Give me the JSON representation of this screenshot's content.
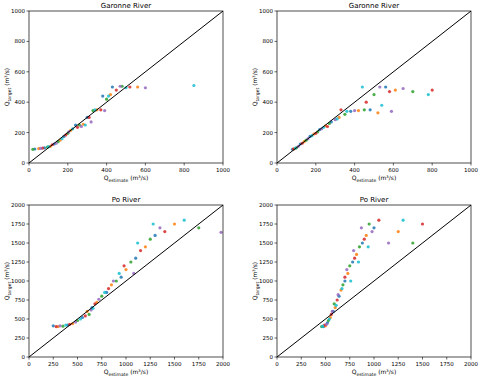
{
  "chart_data": [
    {
      "type": "scatter",
      "title": "Garonne River",
      "xlabel": "Qestimate (m³/s)",
      "ylabel": "Qtarget (m³/s)",
      "xlim": [
        0,
        1000
      ],
      "ylim": [
        0,
        1000
      ],
      "xticks": [
        0,
        200,
        400,
        600,
        800,
        1000
      ],
      "yticks": [
        0,
        200,
        400,
        600,
        800,
        1000
      ],
      "series": [
        {
          "color": "#1f77b4",
          "x": [
            30,
            80,
            130,
            180,
            240,
            300,
            380,
            430
          ],
          "values": [
            92,
            100,
            125,
            175,
            250,
            300,
            440,
            500
          ]
        },
        {
          "color": "#ff7f0e",
          "x": [
            50,
            110,
            160,
            215,
            280,
            350,
            420,
            560
          ],
          "values": [
            95,
            110,
            150,
            215,
            255,
            350,
            450,
            500
          ]
        },
        {
          "color": "#2ca02c",
          "x": [
            20,
            95,
            150,
            200,
            260,
            330,
            400,
            480
          ],
          "values": [
            90,
            105,
            140,
            195,
            250,
            345,
            420,
            505
          ]
        },
        {
          "color": "#d62728",
          "x": [
            70,
            120,
            190,
            250,
            310,
            370,
            450,
            520
          ],
          "values": [
            98,
            120,
            185,
            235,
            300,
            350,
            480,
            500
          ]
        },
        {
          "color": "#9467bd",
          "x": [
            60,
            140,
            205,
            270,
            320,
            390,
            470,
            600
          ],
          "values": [
            96,
            130,
            205,
            240,
            270,
            345,
            505,
            495
          ]
        },
        {
          "color": "#17becf",
          "x": [
            100,
            170,
            225,
            290,
            340,
            410,
            500,
            850
          ],
          "values": [
            108,
            160,
            225,
            250,
            350,
            440,
            495,
            510
          ]
        },
        {
          "type": "line",
          "color": "#000000",
          "x": [
            0,
            1000
          ],
          "values": [
            0,
            1000
          ]
        }
      ]
    },
    {
      "type": "scatter",
      "title": "Garonne River",
      "xlabel": "Qestimate (m³/s)",
      "ylabel": "Qtarget (m³/s)",
      "xlim": [
        0,
        1000
      ],
      "ylim": [
        0,
        1000
      ],
      "xticks": [
        0,
        200,
        400,
        600,
        800,
        1000
      ],
      "yticks": [
        0,
        200,
        400,
        600,
        800,
        1000
      ],
      "series": [
        {
          "color": "#1f77b4",
          "x": [
            80,
            120,
            170,
            220,
            280,
            380,
            480,
            560
          ],
          "values": [
            90,
            125,
            175,
            220,
            270,
            340,
            350,
            500
          ]
        },
        {
          "color": "#ff7f0e",
          "x": [
            90,
            140,
            190,
            250,
            320,
            420,
            520,
            610
          ],
          "values": [
            95,
            140,
            190,
            245,
            300,
            345,
            330,
            480
          ]
        },
        {
          "color": "#2ca02c",
          "x": [
            100,
            150,
            210,
            270,
            350,
            450,
            500,
            700
          ],
          "values": [
            100,
            150,
            205,
            260,
            320,
            350,
            450,
            470
          ]
        },
        {
          "color": "#d62728",
          "x": [
            85,
            130,
            200,
            260,
            330,
            460,
            580,
            800
          ],
          "values": [
            92,
            130,
            195,
            240,
            350,
            400,
            470,
            480
          ]
        },
        {
          "color": "#9467bd",
          "x": [
            110,
            160,
            230,
            300,
            400,
            530,
            590,
            650
          ],
          "values": [
            110,
            160,
            225,
            285,
            345,
            500,
            340,
            490
          ]
        },
        {
          "color": "#17becf",
          "x": [
            95,
            180,
            240,
            310,
            360,
            440,
            540,
            780
          ],
          "values": [
            98,
            180,
            235,
            290,
            340,
            500,
            380,
            450
          ]
        },
        {
          "type": "line",
          "color": "#000000",
          "x": [
            0,
            1000
          ],
          "values": [
            0,
            1000
          ]
        }
      ]
    },
    {
      "type": "scatter",
      "title": "Po River",
      "xlabel": "Qestimate (m³/s)",
      "ylabel": "Qtarget (m³/s)",
      "xlim": [
        0,
        2000
      ],
      "ylim": [
        0,
        2000
      ],
      "xticks": [
        0,
        250,
        500,
        750,
        1000,
        1250,
        1500,
        1750,
        2000
      ],
      "yticks": [
        0,
        250,
        500,
        750,
        1000,
        1250,
        1500,
        1750,
        2000
      ],
      "series": [
        {
          "color": "#1f77b4",
          "x": [
            250,
            400,
            550,
            650,
            800,
            950,
            1100,
            1300
          ],
          "values": [
            410,
            420,
            520,
            650,
            850,
            1050,
            1300,
            1600
          ]
        },
        {
          "color": "#ff7f0e",
          "x": [
            300,
            450,
            600,
            700,
            850,
            1000,
            1200,
            1500
          ],
          "values": [
            400,
            440,
            600,
            720,
            950,
            1150,
            1450,
            1750
          ]
        },
        {
          "color": "#2ca02c",
          "x": [
            350,
            500,
            620,
            750,
            900,
            1050,
            1250,
            1750
          ],
          "values": [
            405,
            480,
            560,
            800,
            1000,
            1250,
            1550,
            1700
          ]
        },
        {
          "color": "#d62728",
          "x": [
            280,
            420,
            580,
            680,
            820,
            980,
            1150,
            1400
          ],
          "values": [
            400,
            430,
            540,
            700,
            900,
            1200,
            1400,
            1650
          ]
        },
        {
          "color": "#9467bd",
          "x": [
            320,
            480,
            640,
            720,
            870,
            1080,
            1350,
            1980
          ],
          "values": [
            410,
            460,
            620,
            760,
            1000,
            1100,
            1700,
            1640
          ]
        },
        {
          "color": "#17becf",
          "x": [
            380,
            530,
            660,
            780,
            930,
            1120,
            1280,
            1600
          ],
          "values": [
            420,
            500,
            640,
            850,
            1100,
            1500,
            1750,
            1800
          ]
        },
        {
          "type": "line",
          "color": "#000000",
          "x": [
            0,
            2000
          ],
          "values": [
            0,
            2000
          ]
        }
      ]
    },
    {
      "type": "scatter",
      "title": "Po River",
      "xlabel": "Qestimate (m³/s)",
      "ylabel": "Qtarget (m³/s)",
      "xlim": [
        0,
        2000
      ],
      "ylim": [
        0,
        2000
      ],
      "xticks": [
        0,
        250,
        500,
        750,
        1000,
        1250,
        1500,
        1750,
        2000
      ],
      "yticks": [
        0,
        250,
        500,
        750,
        1000,
        1250,
        1500,
        1750,
        2000
      ],
      "series": [
        {
          "color": "#1f77b4",
          "x": [
            480,
            520,
            580,
            640,
            700,
            780,
            880,
            1000
          ],
          "values": [
            400,
            450,
            600,
            800,
            1000,
            1250,
            1500,
            1700
          ]
        },
        {
          "color": "#ff7f0e",
          "x": [
            500,
            550,
            600,
            660,
            730,
            820,
            920,
            1250
          ],
          "values": [
            410,
            520,
            650,
            880,
            1100,
            1350,
            1600,
            1650
          ]
        },
        {
          "color": "#2ca02c",
          "x": [
            460,
            530,
            590,
            680,
            750,
            850,
            950,
            1400
          ],
          "values": [
            400,
            480,
            700,
            950,
            1200,
            1450,
            1750,
            1500
          ]
        },
        {
          "color": "#d62728",
          "x": [
            490,
            560,
            620,
            700,
            800,
            900,
            1050,
            1500
          ],
          "values": [
            420,
            560,
            750,
            1050,
            1300,
            1550,
            1800,
            1750
          ]
        },
        {
          "color": "#9467bd",
          "x": [
            510,
            570,
            630,
            720,
            790,
            870,
            980,
            1150
          ],
          "values": [
            430,
            600,
            820,
            1150,
            1400,
            1700,
            1650,
            1500
          ]
        },
        {
          "color": "#17becf",
          "x": [
            470,
            540,
            610,
            670,
            760,
            840,
            940,
            1300
          ],
          "values": [
            405,
            500,
            680,
            900,
            1000,
            1250,
            1450,
            1800
          ]
        },
        {
          "type": "line",
          "color": "#000000",
          "x": [
            0,
            2000
          ],
          "values": [
            0,
            2000
          ]
        }
      ]
    }
  ]
}
